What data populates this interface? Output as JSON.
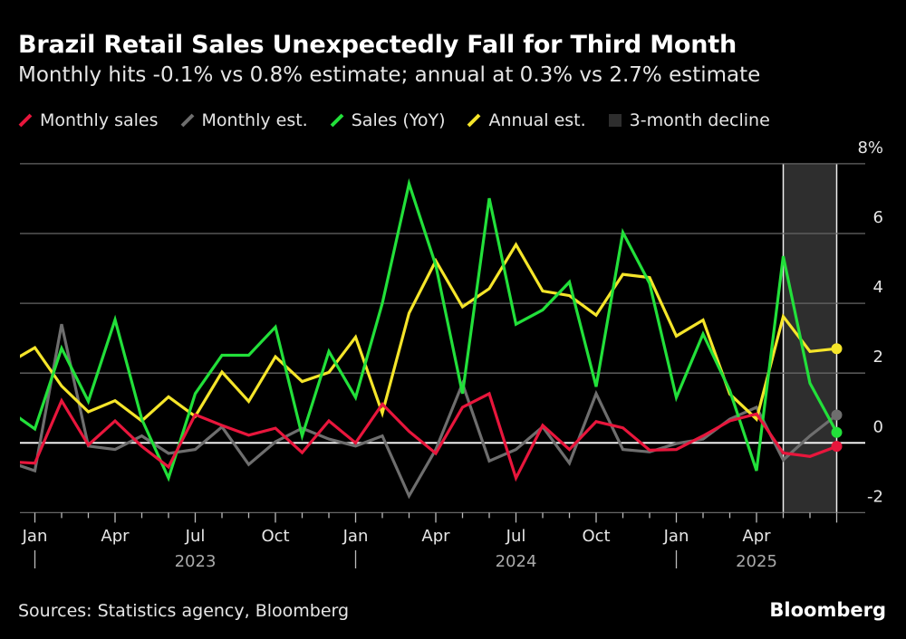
{
  "title": "Brazil Retail Sales Unexpectedly Fall for Third Month",
  "subtitle": "Monthly hits -0.1% vs 0.8% estimate; annual at 0.3% vs 2.7% estimate",
  "source": "Sources: Statistics agency, Bloomberg",
  "brand": "Bloomberg",
  "chart_data": {
    "type": "line",
    "x": [
      "2022-12",
      "2023-01",
      "2023-02",
      "2023-03",
      "2023-04",
      "2023-05",
      "2023-06",
      "2023-07",
      "2023-08",
      "2023-09",
      "2023-10",
      "2023-11",
      "2023-12",
      "2024-01",
      "2024-02",
      "2024-03",
      "2024-04",
      "2024-05",
      "2024-06",
      "2024-07",
      "2024-08",
      "2024-09",
      "2024-10",
      "2024-11",
      "2024-12",
      "2025-01",
      "2025-02",
      "2025-03",
      "2025-04",
      "2025-05",
      "2025-06",
      "2025-07"
    ],
    "series": [
      {
        "name": "Monthly sales",
        "color": "#e8163c",
        "values": [
          -0.54,
          -0.58,
          1.21,
          -0.06,
          0.63,
          -0.1,
          -0.69,
          0.81,
          0.5,
          0.22,
          0.42,
          -0.28,
          0.63,
          0,
          1.11,
          0.33,
          -0.3,
          1.02,
          1.41,
          -1.01,
          0.5,
          -0.19,
          0.61,
          0.43,
          -0.21,
          -0.19,
          0.2,
          0.63,
          0.83,
          -0.29,
          -0.39,
          -0.1
        ]
      },
      {
        "name": "Monthly est.",
        "color": "#6e6e6e",
        "values": [
          -0.54,
          -0.8,
          3.4,
          -0.09,
          -0.19,
          0.2,
          -0.3,
          -0.19,
          0.46,
          -0.62,
          0.03,
          0.42,
          0.11,
          -0.09,
          0.2,
          -1.52,
          -0.19,
          1.7,
          -0.52,
          -0.19,
          0.46,
          -0.58,
          1.41,
          -0.19,
          -0.26,
          -0.02,
          0.11,
          0.68,
          1.02,
          -0.49,
          0.2,
          0.8
        ]
      },
      {
        "name": "Sales (YoY)",
        "color": "#22e03a",
        "values": [
          0.94,
          0.4,
          2.71,
          1.19,
          3.53,
          0.68,
          -1.01,
          1.41,
          2.51,
          2.51,
          3.32,
          0.2,
          2.62,
          1.3,
          4.0,
          7.43,
          5.09,
          1.41,
          7.01,
          3.4,
          3.81,
          4.61,
          1.61,
          6.03,
          4.57,
          1.3,
          3.12,
          1.5,
          -0.8,
          5.35,
          1.71,
          0.3
        ]
      },
      {
        "name": "Annual est.",
        "color": "#f5e52a",
        "values": [
          2.28,
          2.73,
          1.63,
          0.89,
          1.21,
          0.63,
          1.32,
          0.76,
          2.03,
          1.19,
          2.47,
          1.76,
          2.02,
          3.03,
          0.85,
          3.72,
          5.22,
          3.9,
          4.42,
          5.68,
          4.35,
          4.22,
          3.66,
          4.83,
          4.74,
          3.06,
          3.52,
          1.4,
          0.68,
          3.62,
          2.62,
          2.7
        ]
      }
    ],
    "shaded_region": {
      "name": "3-month decline",
      "color": "#2e2e2e",
      "from": "2025-05",
      "to": "2025-07"
    },
    "ylim": [
      -2,
      8
    ],
    "yticks": [
      "8%",
      "6",
      "4",
      "2",
      "0",
      "-2"
    ],
    "ytick_values": [
      8,
      6,
      4,
      2,
      0,
      -2
    ],
    "xtick_labels": [
      {
        "month": "2023-01",
        "label": "Jan"
      },
      {
        "month": "2023-04",
        "label": "Apr"
      },
      {
        "month": "2023-07",
        "label": "Jul"
      },
      {
        "month": "2023-10",
        "label": "Oct"
      },
      {
        "month": "2024-01",
        "label": "Jan"
      },
      {
        "month": "2024-04",
        "label": "Apr"
      },
      {
        "month": "2024-07",
        "label": "Jul"
      },
      {
        "month": "2024-10",
        "label": "Oct"
      },
      {
        "month": "2025-01",
        "label": "Jan"
      },
      {
        "month": "2025-04",
        "label": "Apr"
      }
    ],
    "year_labels": [
      {
        "month": "2023-07",
        "label": "2023"
      },
      {
        "month": "2024-07",
        "label": "2024"
      },
      {
        "month": "2025-04",
        "label": "2025"
      }
    ],
    "grid": true,
    "y_axis_position": "right",
    "legend_position": "top-left"
  }
}
